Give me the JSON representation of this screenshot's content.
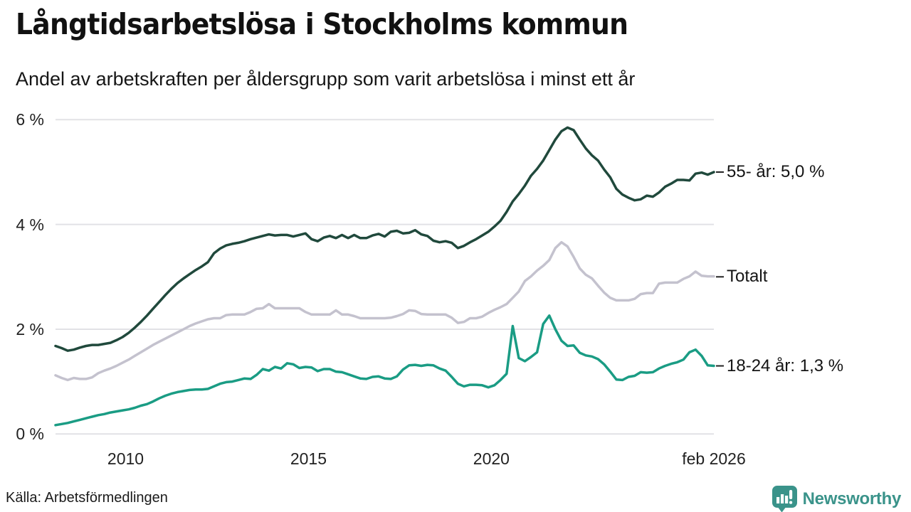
{
  "header": {
    "title": "Långtidsarbetslösa i Stockholms kommun",
    "subtitle": "Andel av arbetskraften per åldersgrupp som varit arbetslösa i minst ett år"
  },
  "footer": {
    "source": "Källa: Arbetsförmedlingen",
    "brand_name": "Newsworthy",
    "brand_color": "#3a938a"
  },
  "chart_data": {
    "type": "line",
    "title": "Långtidsarbetslösa i Stockholms kommun",
    "subtitle": "Andel av arbetskraften per åldersgrupp som varit arbetslösa i minst ett år",
    "unit": "%",
    "x_start": "2008-02",
    "x_end": "2026-02",
    "step_months": 2,
    "total_months": 216,
    "ylim": [
      0,
      6
    ],
    "grid": true,
    "y_ticks": [
      {
        "value": 0,
        "label": "0 %"
      },
      {
        "value": 2,
        "label": "2 %"
      },
      {
        "value": 4,
        "label": "4 %"
      },
      {
        "value": 6,
        "label": "6 %"
      }
    ],
    "x_ticks": [
      {
        "month_index": 23,
        "label": "2010"
      },
      {
        "month_index": 83,
        "label": "2015"
      },
      {
        "month_index": 143,
        "label": "2020"
      },
      {
        "month_index": 216,
        "label": "feb 2026"
      }
    ],
    "series": [
      {
        "name": "55- år",
        "end_label": "55- år: 5,0 %",
        "last_value": 5.0,
        "color": "#20493c",
        "values": [
          1.68,
          1.64,
          1.59,
          1.61,
          1.65,
          1.68,
          1.7,
          1.7,
          1.72,
          1.74,
          1.79,
          1.85,
          1.93,
          2.03,
          2.14,
          2.26,
          2.39,
          2.52,
          2.65,
          2.77,
          2.88,
          2.97,
          3.05,
          3.13,
          3.2,
          3.28,
          3.45,
          3.54,
          3.6,
          3.63,
          3.65,
          3.68,
          3.72,
          3.75,
          3.78,
          3.81,
          3.79,
          3.8,
          3.8,
          3.77,
          3.8,
          3.83,
          3.72,
          3.68,
          3.75,
          3.78,
          3.74,
          3.8,
          3.74,
          3.8,
          3.74,
          3.74,
          3.79,
          3.82,
          3.77,
          3.86,
          3.88,
          3.83,
          3.84,
          3.89,
          3.81,
          3.78,
          3.69,
          3.66,
          3.68,
          3.65,
          3.55,
          3.59,
          3.66,
          3.72,
          3.79,
          3.86,
          3.96,
          4.07,
          4.24,
          4.44,
          4.58,
          4.74,
          4.93,
          5.06,
          5.22,
          5.42,
          5.62,
          5.78,
          5.85,
          5.8,
          5.62,
          5.45,
          5.32,
          5.22,
          5.05,
          4.9,
          4.68,
          4.57,
          4.51,
          4.46,
          4.48,
          4.55,
          4.53,
          4.61,
          4.72,
          4.78,
          4.85,
          4.85,
          4.84,
          4.97,
          4.99,
          4.95,
          5.0
        ]
      },
      {
        "name": "Totalt",
        "end_label": "Totalt",
        "last_value": 3.0,
        "color": "#c4c2ce",
        "values": [
          1.12,
          1.07,
          1.03,
          1.07,
          1.05,
          1.05,
          1.08,
          1.16,
          1.21,
          1.25,
          1.3,
          1.36,
          1.42,
          1.49,
          1.56,
          1.63,
          1.7,
          1.76,
          1.82,
          1.88,
          1.94,
          2.0,
          2.06,
          2.11,
          2.15,
          2.19,
          2.21,
          2.21,
          2.27,
          2.28,
          2.28,
          2.28,
          2.33,
          2.39,
          2.4,
          2.48,
          2.4,
          2.4,
          2.4,
          2.4,
          2.4,
          2.33,
          2.28,
          2.28,
          2.28,
          2.28,
          2.36,
          2.28,
          2.28,
          2.25,
          2.21,
          2.21,
          2.21,
          2.21,
          2.21,
          2.22,
          2.25,
          2.29,
          2.36,
          2.35,
          2.29,
          2.28,
          2.28,
          2.28,
          2.28,
          2.22,
          2.12,
          2.14,
          2.21,
          2.21,
          2.24,
          2.31,
          2.37,
          2.42,
          2.48,
          2.6,
          2.72,
          2.92,
          3.01,
          3.12,
          3.21,
          3.32,
          3.55,
          3.66,
          3.58,
          3.38,
          3.16,
          3.04,
          2.97,
          2.83,
          2.7,
          2.6,
          2.55,
          2.55,
          2.55,
          2.58,
          2.67,
          2.69,
          2.69,
          2.87,
          2.89,
          2.89,
          2.89,
          2.96,
          3.01,
          3.1,
          3.02,
          3.01,
          3.01
        ]
      },
      {
        "name": "18-24 år",
        "end_label": "18-24 år: 1,3 %",
        "last_value": 1.3,
        "color": "#1a9c84",
        "values": [
          0.17,
          0.19,
          0.21,
          0.24,
          0.27,
          0.3,
          0.33,
          0.36,
          0.38,
          0.41,
          0.43,
          0.45,
          0.47,
          0.5,
          0.54,
          0.57,
          0.62,
          0.68,
          0.73,
          0.77,
          0.8,
          0.82,
          0.84,
          0.85,
          0.85,
          0.86,
          0.91,
          0.96,
          0.99,
          1.0,
          1.03,
          1.06,
          1.05,
          1.13,
          1.24,
          1.21,
          1.28,
          1.25,
          1.35,
          1.33,
          1.26,
          1.28,
          1.27,
          1.2,
          1.24,
          1.24,
          1.19,
          1.18,
          1.14,
          1.1,
          1.06,
          1.05,
          1.09,
          1.1,
          1.06,
          1.05,
          1.1,
          1.23,
          1.31,
          1.32,
          1.3,
          1.32,
          1.31,
          1.25,
          1.21,
          1.09,
          0.96,
          0.91,
          0.94,
          0.94,
          0.93,
          0.89,
          0.93,
          1.03,
          1.15,
          2.06,
          1.45,
          1.39,
          1.47,
          1.56,
          2.1,
          2.26,
          2.0,
          1.78,
          1.68,
          1.69,
          1.55,
          1.5,
          1.48,
          1.43,
          1.33,
          1.19,
          1.04,
          1.03,
          1.09,
          1.11,
          1.18,
          1.17,
          1.18,
          1.25,
          1.3,
          1.34,
          1.37,
          1.42,
          1.56,
          1.61,
          1.49,
          1.31,
          1.3
        ]
      }
    ]
  }
}
